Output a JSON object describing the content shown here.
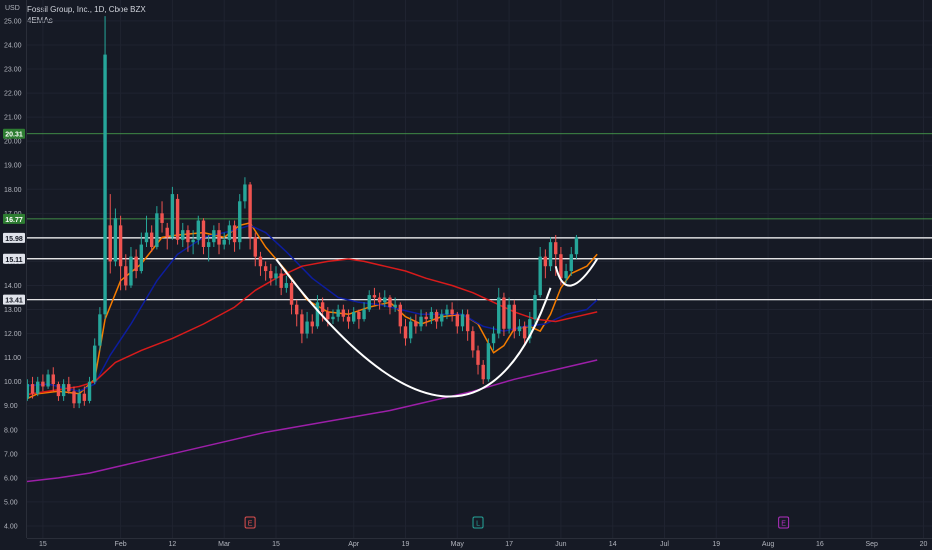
{
  "header": {
    "currency": "USD",
    "title": "Fossil Group, Inc., 1D, Cboe BZX",
    "indicator": "4EMAs"
  },
  "colors": {
    "background": "#161a25",
    "grid": "#1f2330",
    "up": "#26a69a",
    "down": "#ef5350",
    "ema_fast": "#f57c00",
    "ema_mid": "#0d1d9e",
    "ema_slow": "#d81b1b",
    "ema_long": "#9c1fa8",
    "level_green": "#4caf50",
    "level_white": "#ffffff",
    "cup": "#ffffff",
    "marker_e": "#e05050",
    "marker_l": "#26a69a",
    "marker_e2": "#b02fc0"
  },
  "chart_data": {
    "type": "candlestick",
    "y_axis": {
      "range": [
        4.0,
        25.5
      ],
      "ticks": [
        "4.00",
        "5.00",
        "6.00",
        "7.00",
        "8.00",
        "9.00",
        "10.00",
        "11.00",
        "12.00",
        "13.00",
        "14.00",
        "15.00",
        "16.00",
        "17.00",
        "18.00",
        "19.00",
        "20.00",
        "21.00",
        "22.00",
        "23.00",
        "24.00",
        "25.00"
      ]
    },
    "x_axis": {
      "tick_labels": [
        "15",
        "Feb",
        "12",
        "Mar",
        "15",
        "Apr",
        "19",
        "May",
        "17",
        "Jun",
        "14",
        "Jul",
        "19",
        "Aug",
        "16",
        "Sep",
        "20"
      ],
      "tick_bar_index": [
        5,
        20,
        30,
        40,
        50,
        65,
        75,
        85,
        95,
        105,
        115,
        125,
        135,
        145,
        155,
        165,
        175
      ]
    },
    "horizontal_levels": [
      {
        "value": 20.31,
        "label": "20.31",
        "color": "green"
      },
      {
        "value": 16.77,
        "label": "16.77",
        "color": "green"
      },
      {
        "value": 15.98,
        "label": "15.98",
        "color": "white"
      },
      {
        "value": 15.11,
        "label": "15.11",
        "color": "white"
      },
      {
        "value": 13.41,
        "label": "13.41",
        "color": "white"
      }
    ],
    "event_markers": [
      {
        "bar_index": 45,
        "letter": "E",
        "color_key": "marker_e"
      },
      {
        "bar_index": 89,
        "letter": "L",
        "color_key": "marker_l"
      },
      {
        "bar_index": 148,
        "letter": "E",
        "color_key": "marker_e2"
      }
    ],
    "candles": [
      [
        9.4,
        8.7,
        9.7,
        8.6
      ],
      [
        8.8,
        9.3,
        9.6,
        8.7
      ],
      [
        9.3,
        9.9,
        10.1,
        9.2
      ],
      [
        9.9,
        9.5,
        10.2,
        9.3
      ],
      [
        9.5,
        10.0,
        10.2,
        9.4
      ],
      [
        10.0,
        9.8,
        10.3,
        9.6
      ],
      [
        9.8,
        10.3,
        10.5,
        9.7
      ],
      [
        10.3,
        9.9,
        10.6,
        9.6
      ],
      [
        9.9,
        9.4,
        10.0,
        9.2
      ],
      [
        9.4,
        9.9,
        10.1,
        9.2
      ],
      [
        9.9,
        9.6,
        10.2,
        9.5
      ],
      [
        9.6,
        9.1,
        9.8,
        8.9
      ],
      [
        9.1,
        9.5,
        9.7,
        8.9
      ],
      [
        9.5,
        9.2,
        9.8,
        9.0
      ],
      [
        9.2,
        10.0,
        10.2,
        9.1
      ],
      [
        10.0,
        11.5,
        11.8,
        9.9
      ],
      [
        11.5,
        12.8,
        13.1,
        11.3
      ],
      [
        12.8,
        23.6,
        25.2,
        12.6
      ],
      [
        16.5,
        15.0,
        17.8,
        14.5
      ],
      [
        15.0,
        16.8,
        17.2,
        14.8
      ],
      [
        16.5,
        14.8,
        16.9,
        13.8
      ],
      [
        14.8,
        14.0,
        15.3,
        13.8
      ],
      [
        14.0,
        15.2,
        15.6,
        13.9
      ],
      [
        15.2,
        14.6,
        15.5,
        14.3
      ],
      [
        14.6,
        15.7,
        16.2,
        14.5
      ],
      [
        15.8,
        16.2,
        16.9,
        15.6
      ],
      [
        16.2,
        15.6,
        16.5,
        15.4
      ],
      [
        15.6,
        17.0,
        17.3,
        15.5
      ],
      [
        17.0,
        16.6,
        17.5,
        16.2
      ],
      [
        16.4,
        16.0,
        16.6,
        15.5
      ],
      [
        16.0,
        17.8,
        18.1,
        15.9
      ],
      [
        17.6,
        15.9,
        17.8,
        15.7
      ],
      [
        15.9,
        16.3,
        16.6,
        15.6
      ],
      [
        16.3,
        15.8,
        16.5,
        15.4
      ],
      [
        15.8,
        15.9,
        16.3,
        15.3
      ],
      [
        15.9,
        16.7,
        16.9,
        15.7
      ],
      [
        16.7,
        15.6,
        16.8,
        15.3
      ],
      [
        15.6,
        15.8,
        16.1,
        15.0
      ],
      [
        15.8,
        16.3,
        16.5,
        15.6
      ],
      [
        16.3,
        15.7,
        16.6,
        15.3
      ],
      [
        15.7,
        15.9,
        16.2,
        15.5
      ],
      [
        15.9,
        16.5,
        16.7,
        15.7
      ],
      [
        16.5,
        15.8,
        16.7,
        15.4
      ],
      [
        15.8,
        17.5,
        17.8,
        15.5
      ],
      [
        17.5,
        18.2,
        18.5,
        17.2
      ],
      [
        18.2,
        16.0,
        18.3,
        15.5
      ],
      [
        16.0,
        15.2,
        16.2,
        14.8
      ],
      [
        15.2,
        14.8,
        15.4,
        14.4
      ],
      [
        14.8,
        14.6,
        15.0,
        14.2
      ],
      [
        14.6,
        14.3,
        14.9,
        14.0
      ],
      [
        14.3,
        14.5,
        14.8,
        14.0
      ],
      [
        14.5,
        13.9,
        14.7,
        13.6
      ],
      [
        13.9,
        14.1,
        14.4,
        13.7
      ],
      [
        14.1,
        13.2,
        14.2,
        12.8
      ],
      [
        13.2,
        12.8,
        13.4,
        12.3
      ],
      [
        12.8,
        12.0,
        13.0,
        11.6
      ],
      [
        12.0,
        12.5,
        12.9,
        11.8
      ],
      [
        12.5,
        12.3,
        12.8,
        12.0
      ],
      [
        12.3,
        13.3,
        13.6,
        12.2
      ],
      [
        13.3,
        12.9,
        13.5,
        12.5
      ],
      [
        12.9,
        12.6,
        13.1,
        12.3
      ],
      [
        12.6,
        12.7,
        13.0,
        12.4
      ],
      [
        12.7,
        13.0,
        13.2,
        12.5
      ],
      [
        13.0,
        12.7,
        13.2,
        12.5
      ],
      [
        12.7,
        12.5,
        13.0,
        12.2
      ],
      [
        12.5,
        12.9,
        13.1,
        12.4
      ],
      [
        12.9,
        12.6,
        13.0,
        12.2
      ],
      [
        12.6,
        13.0,
        13.3,
        12.5
      ],
      [
        13.0,
        13.6,
        13.8,
        12.9
      ],
      [
        13.6,
        13.5,
        13.9,
        13.2
      ],
      [
        13.5,
        13.3,
        13.7,
        13.0
      ],
      [
        13.3,
        13.5,
        13.8,
        13.1
      ],
      [
        13.5,
        13.1,
        13.6,
        12.8
      ],
      [
        13.1,
        13.2,
        13.5,
        12.9
      ],
      [
        13.2,
        12.3,
        13.3,
        12.0
      ],
      [
        12.3,
        11.8,
        12.6,
        11.5
      ],
      [
        11.8,
        12.5,
        12.7,
        11.6
      ],
      [
        12.5,
        12.3,
        12.8,
        12.0
      ],
      [
        12.3,
        12.7,
        13.0,
        12.1
      ],
      [
        12.7,
        12.6,
        12.9,
        12.3
      ],
      [
        12.6,
        12.9,
        13.1,
        12.4
      ],
      [
        12.9,
        12.5,
        13.0,
        12.2
      ],
      [
        12.5,
        12.8,
        13.0,
        12.3
      ],
      [
        12.8,
        13.0,
        13.2,
        12.6
      ],
      [
        13.0,
        12.8,
        13.3,
        12.5
      ],
      [
        12.8,
        12.3,
        12.9,
        12.0
      ],
      [
        12.3,
        12.8,
        13.0,
        12.1
      ],
      [
        12.8,
        12.1,
        13.0,
        11.7
      ],
      [
        12.1,
        11.3,
        12.3,
        11.0
      ],
      [
        11.3,
        10.7,
        11.5,
        10.3
      ],
      [
        10.7,
        10.1,
        10.9,
        9.9
      ],
      [
        10.1,
        11.6,
        11.8,
        10.0
      ],
      [
        11.6,
        12.0,
        12.3,
        11.3
      ],
      [
        12.0,
        13.5,
        13.9,
        11.8
      ],
      [
        13.5,
        12.2,
        13.7,
        11.9
      ],
      [
        12.2,
        13.2,
        13.5,
        12.0
      ],
      [
        13.2,
        12.1,
        13.4,
        11.8
      ],
      [
        12.1,
        12.3,
        12.6,
        11.9
      ],
      [
        12.3,
        11.8,
        12.5,
        11.5
      ],
      [
        11.8,
        12.6,
        12.9,
        11.6
      ],
      [
        12.6,
        13.6,
        13.8,
        12.4
      ],
      [
        13.6,
        15.2,
        15.6,
        13.5
      ],
      [
        15.2,
        14.8,
        15.5,
        14.3
      ],
      [
        14.8,
        15.8,
        16.0,
        14.6
      ],
      [
        15.8,
        15.3,
        16.1,
        14.4
      ],
      [
        15.3,
        14.3,
        15.6,
        14.0
      ],
      [
        14.3,
        14.6,
        14.9,
        14.1
      ],
      [
        14.6,
        15.3,
        15.6,
        14.4
      ],
      [
        15.3,
        16.0,
        16.1,
        15.1
      ]
    ],
    "ema_series": [
      {
        "color_key": "ema_fast",
        "values": [
          [
            0,
            9.1
          ],
          [
            4,
            9.5
          ],
          [
            8,
            9.6
          ],
          [
            12,
            9.5
          ],
          [
            15,
            10.1
          ],
          [
            17,
            12.6
          ],
          [
            20,
            14.2
          ],
          [
            24,
            14.9
          ],
          [
            28,
            16.0
          ],
          [
            31,
            16.1
          ],
          [
            36,
            16.2
          ],
          [
            40,
            16.0
          ],
          [
            43,
            16.5
          ],
          [
            45,
            16.6
          ],
          [
            48,
            15.6
          ],
          [
            52,
            14.6
          ],
          [
            56,
            13.4
          ],
          [
            60,
            12.9
          ],
          [
            64,
            12.8
          ],
          [
            68,
            13.1
          ],
          [
            72,
            13.3
          ],
          [
            75,
            12.7
          ],
          [
            78,
            12.4
          ],
          [
            82,
            12.7
          ],
          [
            86,
            12.8
          ],
          [
            89,
            12.4
          ],
          [
            92,
            11.2
          ],
          [
            94,
            11.5
          ],
          [
            96,
            12.2
          ],
          [
            99,
            12.3
          ],
          [
            101,
            12.1
          ],
          [
            103,
            12.8
          ],
          [
            105,
            13.9
          ],
          [
            107,
            14.5
          ],
          [
            110,
            14.8
          ],
          [
            112,
            15.3
          ]
        ]
      },
      {
        "color_key": "ema_mid",
        "values": [
          [
            0,
            9.8
          ],
          [
            6,
            9.9
          ],
          [
            12,
            9.6
          ],
          [
            15,
            9.9
          ],
          [
            18,
            11.1
          ],
          [
            22,
            12.4
          ],
          [
            27,
            14.2
          ],
          [
            31,
            15.3
          ],
          [
            36,
            16.0
          ],
          [
            42,
            16.3
          ],
          [
            45,
            16.5
          ],
          [
            48,
            16.2
          ],
          [
            52,
            15.4
          ],
          [
            57,
            14.3
          ],
          [
            62,
            13.5
          ],
          [
            66,
            13.3
          ],
          [
            70,
            13.2
          ],
          [
            74,
            13.0
          ],
          [
            78,
            12.8
          ],
          [
            82,
            12.8
          ],
          [
            86,
            12.8
          ],
          [
            90,
            12.3
          ],
          [
            94,
            12.1
          ],
          [
            98,
            12.3
          ],
          [
            102,
            12.4
          ],
          [
            106,
            12.8
          ],
          [
            110,
            13.0
          ],
          [
            112,
            13.4
          ]
        ]
      },
      {
        "color_key": "ema_slow",
        "values": [
          [
            0,
            9.4
          ],
          [
            6,
            9.6
          ],
          [
            12,
            9.8
          ],
          [
            15,
            10.0
          ],
          [
            19,
            10.8
          ],
          [
            24,
            11.3
          ],
          [
            30,
            11.8
          ],
          [
            36,
            12.4
          ],
          [
            42,
            13.1
          ],
          [
            46,
            13.8
          ],
          [
            50,
            14.3
          ],
          [
            55,
            14.8
          ],
          [
            60,
            15.0
          ],
          [
            64,
            15.1
          ],
          [
            67,
            15.0
          ],
          [
            71,
            14.8
          ],
          [
            75,
            14.6
          ],
          [
            79,
            14.3
          ],
          [
            84,
            14.0
          ],
          [
            88,
            13.7
          ],
          [
            92,
            13.3
          ],
          [
            96,
            12.9
          ],
          [
            100,
            12.6
          ],
          [
            104,
            12.5
          ],
          [
            108,
            12.7
          ],
          [
            112,
            12.9
          ]
        ]
      },
      {
        "color_key": "ema_long",
        "values": [
          [
            0,
            5.8
          ],
          [
            8,
            6.0
          ],
          [
            14,
            6.2
          ],
          [
            20,
            6.5
          ],
          [
            30,
            7.0
          ],
          [
            40,
            7.5
          ],
          [
            48,
            7.9
          ],
          [
            56,
            8.2
          ],
          [
            64,
            8.5
          ],
          [
            72,
            8.8
          ],
          [
            80,
            9.2
          ],
          [
            88,
            9.6
          ],
          [
            96,
            10.1
          ],
          [
            104,
            10.5
          ],
          [
            112,
            10.9
          ]
        ]
      }
    ],
    "cup_pattern": [
      {
        "from_bar": 50,
        "to_bar": 103,
        "rim_left": 15.1,
        "rim_right": 13.9,
        "bottom": 9.4,
        "bottom_bar": 82
      },
      {
        "from_bar": 104,
        "to_bar": 112,
        "rim_left": 14.8,
        "rim_right": 15.1,
        "bottom": 14.0,
        "bottom_bar": 107
      }
    ]
  }
}
